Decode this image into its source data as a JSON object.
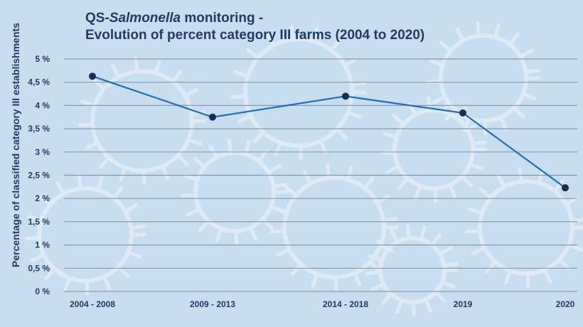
{
  "chart_data": {
    "type": "line",
    "title_prefix": "QS-",
    "title_italic": "Salmonella",
    "title_suffix": " monitoring -",
    "subtitle": "Evolution of percent category III farms (2004 to 2020)",
    "xlabel": "",
    "ylabel": "Percentage of classified category III establishments",
    "categories": [
      "2004 - 2008",
      "2009 - 2013",
      "2014 - 2018",
      "2019",
      "2020"
    ],
    "values": [
      4.63,
      3.75,
      4.2,
      3.84,
      2.23
    ],
    "ylim": [
      0,
      5
    ],
    "yticks": [
      0,
      0.5,
      1,
      1.5,
      2,
      2.5,
      3,
      3.5,
      4,
      4.5,
      5
    ],
    "ytick_labels": [
      "0 %",
      "0,5 %",
      "1 %",
      "1,5 %",
      "2 %",
      "2,5 %",
      "3 %",
      "3,5 %",
      "4 %",
      "4,5 %",
      "5 %"
    ],
    "grid": true,
    "colors": {
      "background": "#c7ddf0",
      "line": "#1f6fb5",
      "marker": "#1b2d54",
      "grid": "#8a9aab",
      "text": "#1f3b66",
      "watermark": "#ddeaf6"
    }
  }
}
